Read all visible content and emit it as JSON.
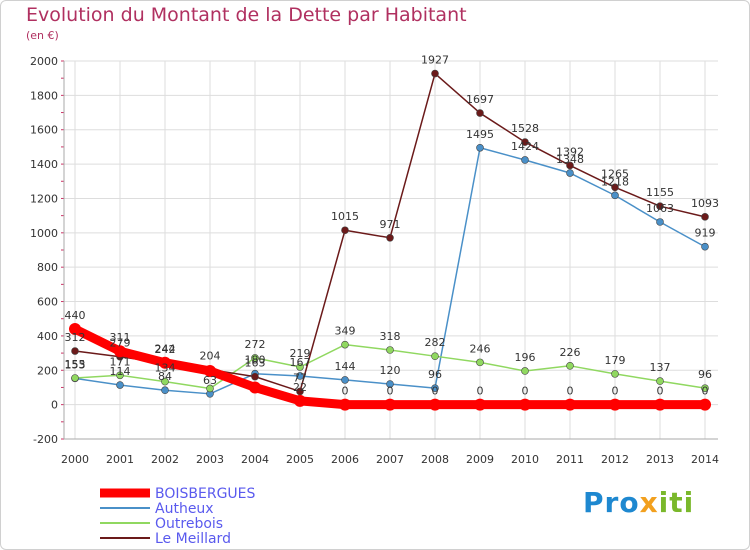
{
  "chart_data": {
    "type": "line",
    "title": "Evolution du Montant de la Dette par Habitant",
    "subtitle": "(en €)",
    "x": [
      "2000",
      "2001",
      "2002",
      "2003",
      "2004",
      "2005",
      "2006",
      "2007",
      "2008",
      "2009",
      "2010",
      "2011",
      "2012",
      "2013",
      "2014"
    ],
    "ylim": [
      -200,
      2000
    ],
    "yticks": [
      -200,
      0,
      200,
      400,
      600,
      800,
      1000,
      1200,
      1400,
      1600,
      1800,
      2000
    ],
    "grid": true,
    "legend_position": "bottom-left",
    "series": [
      {
        "name": "BOISBERGUES",
        "color": "#ff0000",
        "values": [
          440,
          311,
          244,
          196,
          100,
          22,
          0,
          0,
          0,
          0,
          0,
          0,
          0,
          0,
          0
        ],
        "labels": [
          "440",
          "311",
          "244",
          "",
          "",
          "22",
          "0",
          "0",
          "0",
          "0",
          "0",
          "0",
          "0",
          "0",
          "0"
        ]
      },
      {
        "name": "Autheux",
        "color": "#4a90c8",
        "values": [
          153,
          114,
          84,
          63,
          180,
          167,
          144,
          120,
          96,
          1495,
          1424,
          1348,
          1218,
          1063,
          919
        ],
        "labels": [
          "153",
          "114",
          "84",
          "63",
          "180",
          "167",
          "144",
          "120",
          "96",
          "1495",
          "1424",
          "1348",
          "1218",
          "1063",
          "919"
        ]
      },
      {
        "name": "Outrebois",
        "color": "#90d860",
        "values": [
          155,
          171,
          134,
          94,
          272,
          219,
          349,
          318,
          282,
          246,
          196,
          226,
          179,
          137,
          96
        ],
        "labels": [
          "155",
          "171",
          "134",
          "",
          "272",
          "219",
          "349",
          "318",
          "282",
          "246",
          "196",
          "226",
          "179",
          "137",
          "96"
        ]
      },
      {
        "name": "Le Meillard",
        "color": "#6b1a1a",
        "values": [
          312,
          279,
          242,
          204,
          163,
          77,
          1015,
          971,
          1927,
          1697,
          1528,
          1392,
          1265,
          1155,
          1093
        ],
        "labels": [
          "312",
          "279",
          "242",
          "204",
          "163",
          "77",
          "1015",
          "971",
          "1927",
          "1697",
          "1528",
          "1392",
          "1265",
          "1155",
          "1093"
        ]
      }
    ]
  },
  "logo": {
    "p1": "Pro",
    "p2": "x",
    "p3": "iti"
  }
}
